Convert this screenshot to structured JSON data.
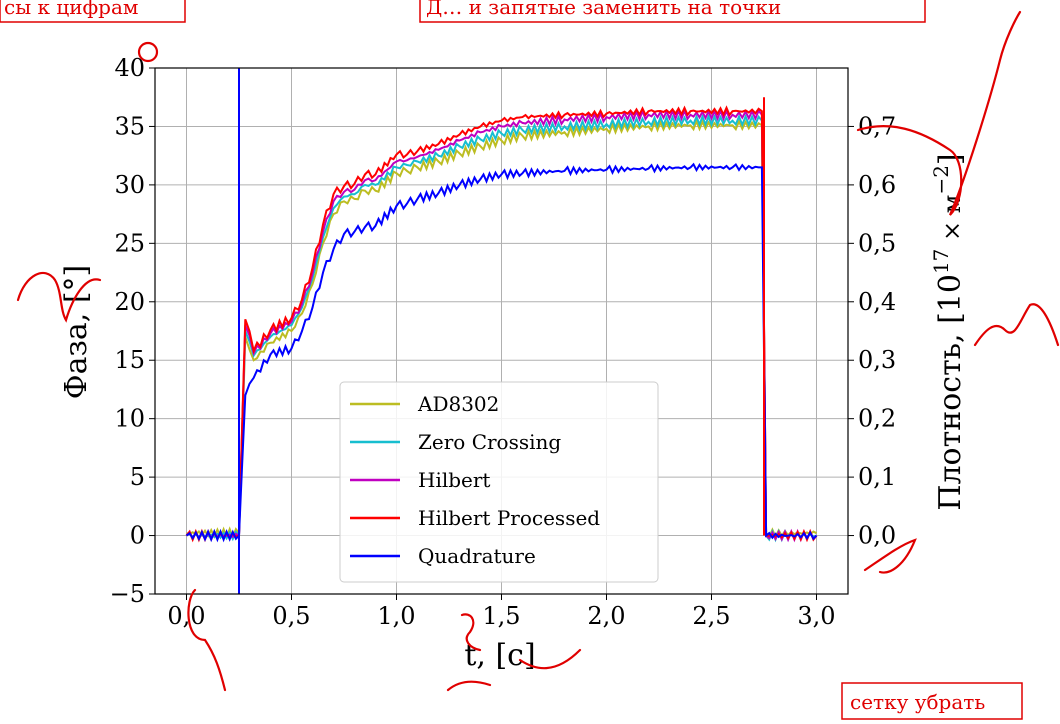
{
  "chart_data": {
    "type": "line",
    "xlabel": "t, [c]",
    "ylabel": "Фаза, [°]",
    "y2label_prefix": "Плотность, [10",
    "y2label_sup": "17",
    "y2label_mid": " × м",
    "y2label_sup2": "−2",
    "y2label_suffix": "]",
    "xlim": [
      -0.15,
      3.15
    ],
    "ylim": [
      -5,
      40
    ],
    "y2lim": [
      -0.1,
      0.8
    ],
    "grid": true,
    "legend_position": "lower-center",
    "xticks": [
      "0,0",
      "0,5",
      "1,0",
      "1,5",
      "2,0",
      "2,5",
      "3,0"
    ],
    "xtick_values": [
      0,
      0.5,
      1.0,
      1.5,
      2.0,
      2.5,
      3.0
    ],
    "yticks": [
      "−5",
      "0",
      "5",
      "10",
      "15",
      "20",
      "25",
      "30",
      "35",
      "40"
    ],
    "ytick_values": [
      -5,
      0,
      5,
      10,
      15,
      20,
      25,
      30,
      35,
      40
    ],
    "y2ticks": [
      "0,0",
      "0,1",
      "0,2",
      "0,3",
      "0,4",
      "0,5",
      "0,6",
      "0,7"
    ],
    "y2tick_values": [
      0,
      0.1,
      0.2,
      0.3,
      0.4,
      0.5,
      0.6,
      0.7
    ],
    "x": [
      0.0,
      0.25,
      0.28,
      0.32,
      0.4,
      0.5,
      0.55,
      0.6,
      0.65,
      0.7,
      0.75,
      0.8,
      0.85,
      0.9,
      1.0,
      1.05,
      1.1,
      1.2,
      1.3,
      1.4,
      1.5,
      1.6,
      1.8,
      2.0,
      2.2,
      2.4,
      2.6,
      2.74,
      2.76,
      3.0
    ],
    "series": [
      {
        "name": "AD8302",
        "color": "#bcbd22",
        "values": [
          0.2,
          0.2,
          17,
          15,
          16.5,
          17.5,
          19,
          21.5,
          25,
          27.5,
          28.6,
          28.8,
          29.5,
          29.5,
          31,
          31.2,
          31.5,
          32,
          32.7,
          33.3,
          33.8,
          34.2,
          34.5,
          34.8,
          35,
          35.1,
          35.1,
          35.1,
          0.2,
          0.2
        ]
      },
      {
        "name": "Zero Crossing",
        "color": "#17becf",
        "values": [
          0,
          0,
          17.5,
          15.4,
          17,
          18,
          19.5,
          22,
          25.5,
          28,
          29,
          29.2,
          30,
          30,
          31.5,
          31.7,
          32,
          32.5,
          33.3,
          33.9,
          34.4,
          34.7,
          35,
          35.2,
          35.4,
          35.5,
          35.5,
          35.5,
          0,
          0
        ]
      },
      {
        "name": "Hilbert",
        "color": "#c000c0",
        "values": [
          0,
          0,
          18,
          15.6,
          17.3,
          18.3,
          19.8,
          22.4,
          26,
          28.6,
          29.4,
          29.6,
          30.4,
          30.4,
          32,
          32.1,
          32.4,
          33,
          33.8,
          34.5,
          35,
          35.3,
          35.6,
          35.8,
          36,
          36,
          36,
          36,
          0,
          0
        ]
      },
      {
        "name": "Hilbert Processed",
        "color": "#ff0000",
        "values": [
          0,
          0,
          18.5,
          15.8,
          17.6,
          18.6,
          20.2,
          22.9,
          26.6,
          29.2,
          29.9,
          30.1,
          30.9,
          30.9,
          32.6,
          32.6,
          32.9,
          33.5,
          34.3,
          35,
          35.5,
          35.8,
          36,
          36.1,
          36.3,
          36.3,
          36.3,
          36.3,
          0,
          0
        ]
      },
      {
        "name": "Quadrature",
        "color": "#0000ff",
        "values": [
          0,
          0,
          12,
          13.5,
          15.5,
          16,
          17.5,
          19.5,
          22.5,
          24.5,
          25.8,
          26,
          26.4,
          26.5,
          28.2,
          28.4,
          28.8,
          29.3,
          30,
          30.5,
          30.9,
          31,
          31.2,
          31.3,
          31.4,
          31.5,
          31.5,
          31.5,
          0,
          0
        ]
      }
    ]
  },
  "annotations": {
    "top_left": "сы к цифрам",
    "top_center": "Д… и запятые заменить на точки",
    "bottom_right": "сетку убрать"
  }
}
